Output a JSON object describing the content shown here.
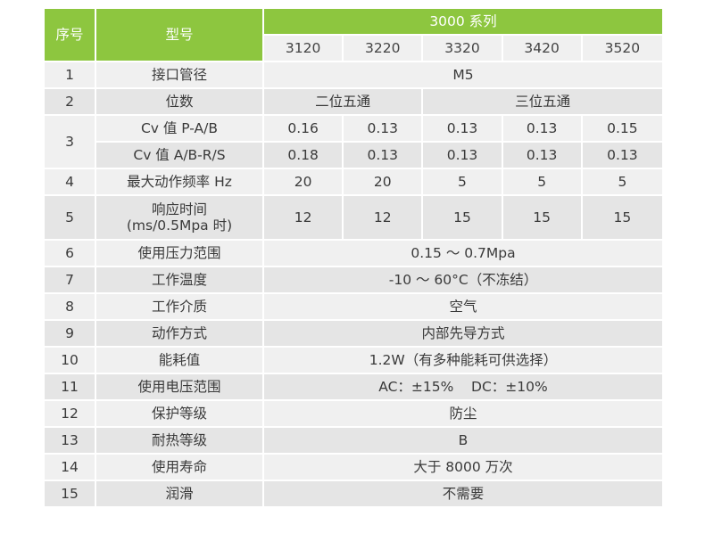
{
  "header": {
    "index_label": "序号",
    "model_label": "型号",
    "series_label": "3000 系列",
    "models": [
      "3120",
      "3220",
      "3320",
      "3420",
      "3520"
    ]
  },
  "rows": [
    {
      "index": "1",
      "name": "接口管径",
      "value": "M5"
    },
    {
      "index": "2",
      "name": "位数",
      "group_a": "二位五通",
      "group_b": "三位五通"
    },
    {
      "index": "3",
      "name_a": "Cv 值 P-A/B",
      "values_a": [
        "0.16",
        "0.13",
        "0.13",
        "0.13",
        "0.15"
      ],
      "name_b": "Cv 值 A/B-R/S",
      "values_b": [
        "0.18",
        "0.13",
        "0.13",
        "0.13",
        "0.13"
      ]
    },
    {
      "index": "4",
      "name": "最大动作频率 Hz",
      "values": [
        "20",
        "20",
        "5",
        "5",
        "5"
      ]
    },
    {
      "index": "5",
      "name_line1": "响应时间",
      "name_line2": "(ms/0.5Mpa 时)",
      "values": [
        "12",
        "12",
        "15",
        "15",
        "15"
      ]
    },
    {
      "index": "6",
      "name": "使用压力范围",
      "value": "0.15 ～ 0.7Mpa"
    },
    {
      "index": "7",
      "name": "工作温度",
      "value": "-10 ～ 60°C（不冻结）"
    },
    {
      "index": "8",
      "name": "工作介质",
      "value": "空气"
    },
    {
      "index": "9",
      "name": "动作方式",
      "value": "内部先导方式"
    },
    {
      "index": "10",
      "name": "能耗值",
      "value": "1.2W（有多种能耗可供选择）"
    },
    {
      "index": "11",
      "name": "使用电压范围",
      "value": "AC：±15%    DC：±10%"
    },
    {
      "index": "12",
      "name": "保护等级",
      "value": "防尘"
    },
    {
      "index": "13",
      "name": "耐热等级",
      "value": "B"
    },
    {
      "index": "14",
      "name": "使用寿命",
      "value": "大于 8000 万次"
    },
    {
      "index": "15",
      "name": "润滑",
      "value": "不需要"
    }
  ],
  "colors": {
    "header_green": "#8dc63f",
    "row_dark": "#e5e5e5",
    "row_light": "#f0f0f0"
  }
}
